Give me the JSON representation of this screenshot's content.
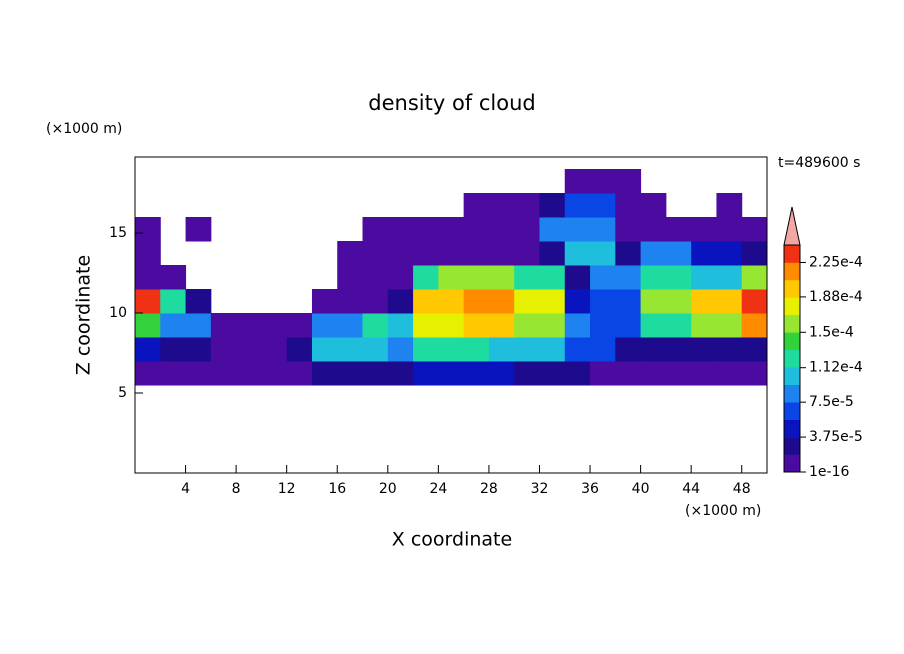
{
  "chart_data": {
    "type": "contour",
    "title": "density of cloud",
    "x_label": "X coordinate",
    "y_label": "Z coordinate",
    "x_unit": "(×1000 m)",
    "y_unit": "(×1000 m)",
    "annotation": "t=489600 s",
    "xlim": [
      0,
      50
    ],
    "ylim": [
      0,
      19.75
    ],
    "xticks": [
      4,
      8,
      12,
      16,
      20,
      24,
      28,
      32,
      36,
      40,
      44,
      48
    ],
    "yticks": [
      5,
      10,
      15
    ],
    "x": [
      1,
      3,
      5,
      7,
      9,
      11,
      13,
      15,
      17,
      19,
      21,
      23,
      25,
      27,
      29,
      31,
      33,
      35,
      37,
      39,
      41,
      43,
      45,
      47,
      49
    ],
    "z": [
      6.25,
      7.75,
      9.25,
      10.75,
      12.25,
      13.75,
      15.25,
      16.75,
      18.25
    ],
    "values": [
      [
        1e-05,
        1e-05,
        1e-05,
        1e-05,
        1e-05,
        1e-05,
        1e-05,
        3e-05,
        3e-05,
        3e-05,
        3e-05,
        5e-05,
        5e-05,
        5e-05,
        5e-05,
        3e-05,
        3e-05,
        3e-05,
        1e-05,
        1e-05,
        1e-05,
        1e-05,
        1e-05,
        1e-05,
        1e-05
      ],
      [
        5e-05,
        3e-05,
        3e-05,
        1e-05,
        1e-05,
        1e-05,
        3e-05,
        0.000105,
        0.000105,
        0.000105,
        8.5e-05,
        0.00012,
        0.00012,
        0.00012,
        0.000105,
        0.000105,
        0.000105,
        6.5e-05,
        6.5e-05,
        3e-05,
        3e-05,
        3e-05,
        3e-05,
        3e-05,
        3e-05
      ],
      [
        0.00014,
        8.5e-05,
        8.5e-05,
        1e-05,
        1e-05,
        1e-05,
        1e-05,
        8.5e-05,
        8.5e-05,
        0.00012,
        0.000105,
        0.00018,
        0.00018,
        0.000195,
        0.000195,
        0.00016,
        0.00016,
        8.5e-05,
        6.5e-05,
        6.5e-05,
        0.00012,
        0.00012,
        0.00016,
        0.00016,
        0.000215
      ],
      [
        0.000235,
        0.00012,
        3e-05,
        null,
        null,
        null,
        null,
        1e-05,
        1e-05,
        1e-05,
        3e-05,
        0.000195,
        0.000195,
        0.000215,
        0.000215,
        0.00018,
        0.00018,
        5e-05,
        6.5e-05,
        6.5e-05,
        0.00016,
        0.00016,
        0.000195,
        0.000195,
        0.000235
      ],
      [
        1e-05,
        1e-05,
        null,
        null,
        null,
        null,
        null,
        null,
        1e-05,
        1e-05,
        1e-05,
        0.00012,
        0.00016,
        0.00016,
        0.00016,
        0.00012,
        0.00012,
        3e-05,
        8.5e-05,
        8.5e-05,
        0.00012,
        0.00012,
        0.000105,
        0.000105,
        0.00016
      ],
      [
        1e-05,
        null,
        null,
        null,
        null,
        null,
        null,
        null,
        1e-05,
        1e-05,
        1e-05,
        1e-05,
        1e-05,
        1e-05,
        1e-05,
        1e-05,
        3e-05,
        0.000105,
        0.000105,
        3e-05,
        8.5e-05,
        8.5e-05,
        5e-05,
        5e-05,
        3e-05
      ],
      [
        1e-05,
        null,
        1e-05,
        null,
        null,
        null,
        null,
        null,
        null,
        1e-05,
        1e-05,
        1e-05,
        1e-05,
        1e-05,
        1e-05,
        1e-05,
        8.5e-05,
        8.5e-05,
        8.5e-05,
        1e-05,
        1e-05,
        1e-05,
        1e-05,
        1e-05,
        1e-05
      ],
      [
        null,
        null,
        null,
        null,
        null,
        null,
        null,
        null,
        null,
        null,
        null,
        null,
        null,
        1e-05,
        1e-05,
        1e-05,
        3e-05,
        6.5e-05,
        6.5e-05,
        1e-05,
        1e-05,
        null,
        null,
        1e-05,
        null
      ],
      [
        null,
        null,
        null,
        null,
        null,
        null,
        null,
        null,
        null,
        null,
        null,
        null,
        null,
        null,
        null,
        null,
        null,
        1e-05,
        1e-05,
        1e-05,
        null,
        null,
        null,
        null,
        null
      ]
    ],
    "colorbar": {
      "lim": [
        1e-16,
        0.00024375
      ],
      "colors": [
        "#4b0aa0",
        "#1e0a8c",
        "#0a14be",
        "#0a46e6",
        "#1e82f0",
        "#1ebedc",
        "#1edca0",
        "#32d23c",
        "#96e632",
        "#e6f000",
        "#ffc800",
        "#ff8c00",
        "#f03214"
      ],
      "extend_color": "#f4a6a6",
      "ticks": [
        {
          "value": 1e-16,
          "label": "1e-16"
        },
        {
          "value": 3.75e-05,
          "label": "3.75e-5"
        },
        {
          "value": 7.5e-05,
          "label": "7.5e-5"
        },
        {
          "value": 0.000112,
          "label": "1.12e-4"
        },
        {
          "value": 0.00015,
          "label": "1.5e-4"
        },
        {
          "value": 0.000188,
          "label": "1.88e-4"
        },
        {
          "value": 0.000225,
          "label": "2.25e-4"
        }
      ]
    }
  }
}
